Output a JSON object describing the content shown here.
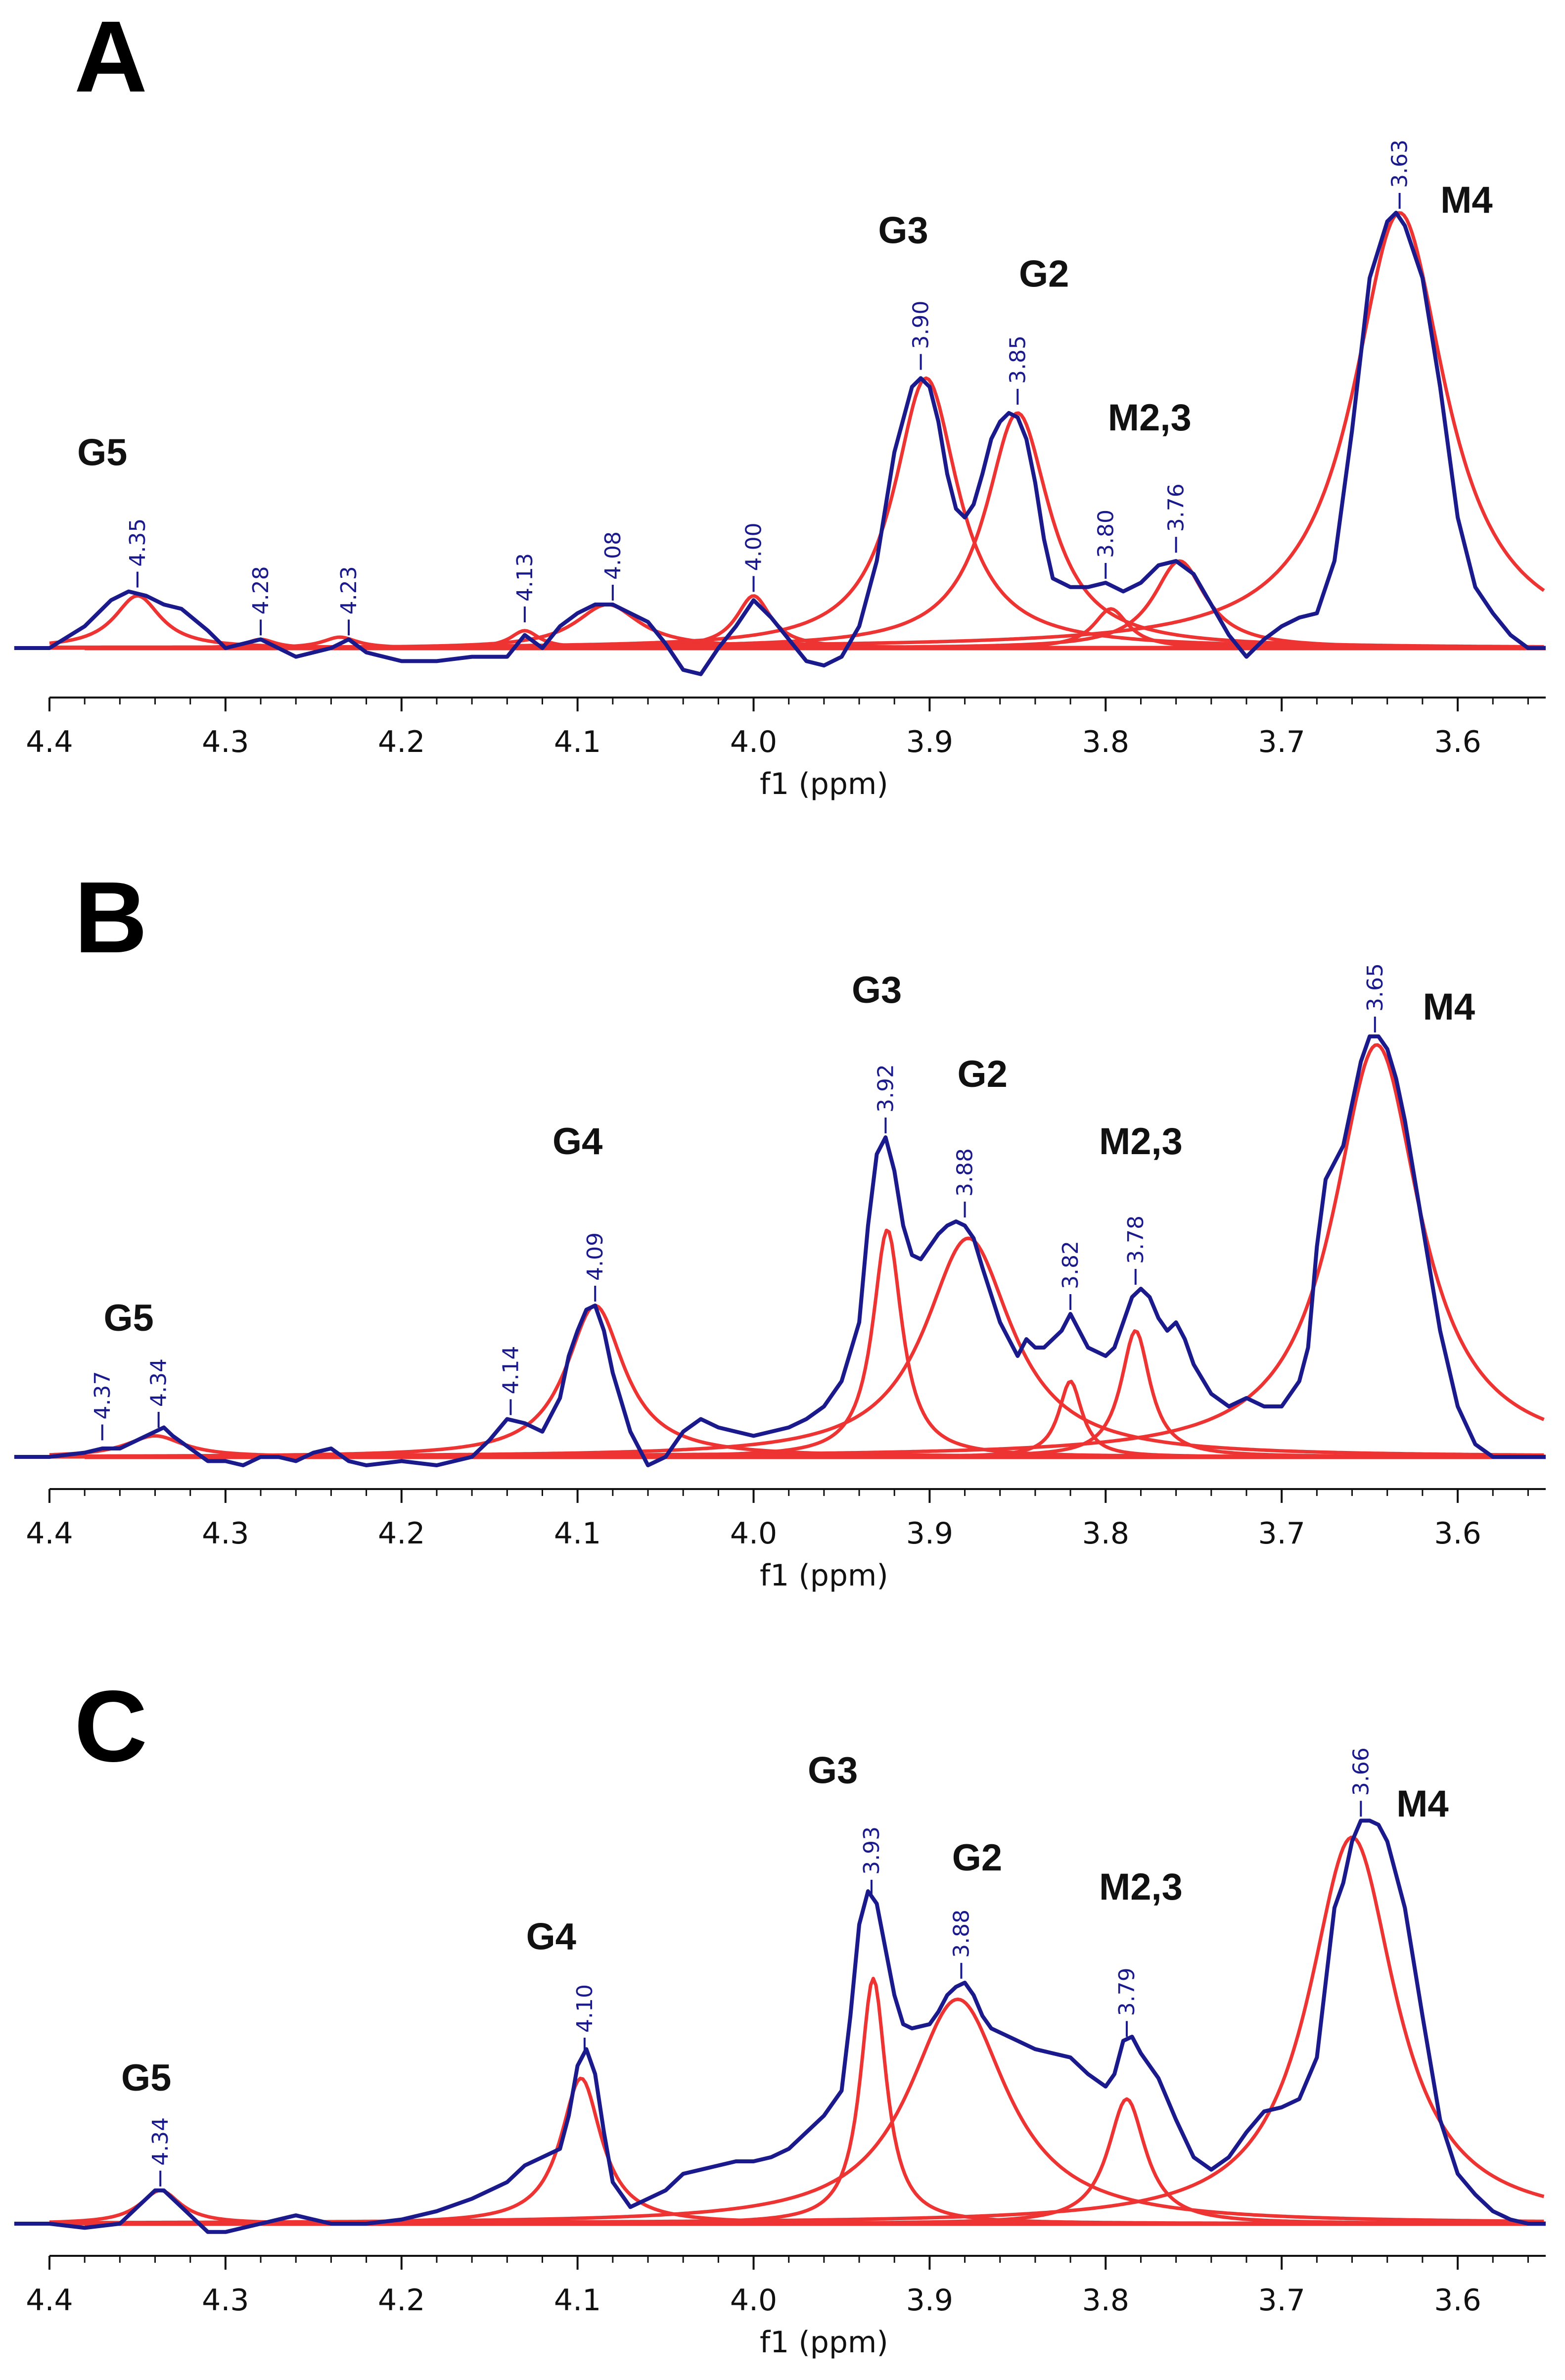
{
  "colors": {
    "spectrum": "#1a1a8c",
    "fit": "#ee3333",
    "axis": "#111111",
    "shift_label": "#1a1a8c"
  },
  "chart_data": [
    {
      "type": "line",
      "panel": "A",
      "xlabel": "f1 (ppm)",
      "xlim": [
        4.4,
        3.55
      ],
      "x_reversed": true,
      "xticks": [
        "4.4",
        "4.3",
        "4.2",
        "4.1",
        "4.0",
        "3.9",
        "3.8",
        "3.7",
        "3.6"
      ],
      "tick_values": [
        4.4,
        4.3,
        4.2,
        4.1,
        4.0,
        3.9,
        3.8,
        3.7,
        3.6
      ],
      "ylim": [
        0,
        1.05
      ],
      "grid": false,
      "peak_labels": [
        {
          "text": "G5",
          "x": 4.37,
          "y": 0.42
        },
        {
          "text": "G3",
          "x": 3.915,
          "y": 0.93
        },
        {
          "text": "G2",
          "x": 3.835,
          "y": 0.83
        },
        {
          "text": "M2,3",
          "x": 3.775,
          "y": 0.5
        },
        {
          "text": "M4",
          "x": 3.595,
          "y": 1.0
        }
      ],
      "shift_labels": [
        {
          "text": "4.35",
          "x": 4.35,
          "y": 0.13
        },
        {
          "text": "4.28",
          "x": 4.28,
          "y": 0.02
        },
        {
          "text": "4.23",
          "x": 4.23,
          "y": 0.02
        },
        {
          "text": "4.13",
          "x": 4.13,
          "y": 0.05
        },
        {
          "text": "4.08",
          "x": 4.08,
          "y": 0.1
        },
        {
          "text": "4.00",
          "x": 4.0,
          "y": 0.12
        },
        {
          "text": "3.90",
          "x": 3.905,
          "y": 0.63
        },
        {
          "text": "3.85",
          "x": 3.85,
          "y": 0.55
        },
        {
          "text": "3.80",
          "x": 3.8,
          "y": 0.15
        },
        {
          "text": "3.76",
          "x": 3.76,
          "y": 0.21
        },
        {
          "text": "3.63",
          "x": 3.633,
          "y": 1.0
        }
      ],
      "fit_peaks": [
        {
          "center": 4.35,
          "height": 0.12,
          "width": 0.016
        },
        {
          "center": 4.28,
          "height": 0.02,
          "width": 0.01
        },
        {
          "center": 4.235,
          "height": 0.025,
          "width": 0.012
        },
        {
          "center": 4.13,
          "height": 0.04,
          "width": 0.01
        },
        {
          "center": 4.083,
          "height": 0.1,
          "width": 0.022
        },
        {
          "center": 4.0,
          "height": 0.12,
          "width": 0.012
        },
        {
          "center": 3.902,
          "height": 0.62,
          "width": 0.022
        },
        {
          "center": 3.85,
          "height": 0.54,
          "width": 0.022
        },
        {
          "center": 3.797,
          "height": 0.09,
          "width": 0.012
        },
        {
          "center": 3.758,
          "height": 0.2,
          "width": 0.018
        },
        {
          "center": 3.633,
          "height": 1.0,
          "width": 0.032
        }
      ],
      "spectrum": {
        "x": [
          4.42,
          4.4,
          4.38,
          4.365,
          4.355,
          4.345,
          4.335,
          4.325,
          4.31,
          4.3,
          4.28,
          4.26,
          4.24,
          4.23,
          4.22,
          4.2,
          4.18,
          4.16,
          4.14,
          4.13,
          4.12,
          4.11,
          4.1,
          4.09,
          4.08,
          4.07,
          4.06,
          4.05,
          4.04,
          4.03,
          4.02,
          4.01,
          4.0,
          3.99,
          3.98,
          3.97,
          3.96,
          3.95,
          3.94,
          3.93,
          3.92,
          3.91,
          3.905,
          3.9,
          3.895,
          3.89,
          3.885,
          3.88,
          3.875,
          3.87,
          3.865,
          3.86,
          3.855,
          3.85,
          3.845,
          3.84,
          3.835,
          3.83,
          3.82,
          3.81,
          3.8,
          3.79,
          3.78,
          3.77,
          3.76,
          3.75,
          3.74,
          3.73,
          3.72,
          3.71,
          3.7,
          3.69,
          3.68,
          3.67,
          3.66,
          3.65,
          3.64,
          3.635,
          3.63,
          3.62,
          3.61,
          3.6,
          3.59,
          3.58,
          3.57,
          3.56,
          3.55
        ],
        "y": [
          0.0,
          0.0,
          0.05,
          0.11,
          0.13,
          0.12,
          0.1,
          0.09,
          0.04,
          0.0,
          0.02,
          -0.02,
          0.0,
          0.02,
          -0.01,
          -0.03,
          -0.03,
          -0.02,
          -0.02,
          0.03,
          0.0,
          0.05,
          0.08,
          0.1,
          0.1,
          0.08,
          0.06,
          0.01,
          -0.05,
          -0.06,
          0.0,
          0.05,
          0.11,
          0.07,
          0.02,
          -0.03,
          -0.04,
          -0.02,
          0.05,
          0.2,
          0.45,
          0.6,
          0.62,
          0.6,
          0.52,
          0.4,
          0.32,
          0.3,
          0.33,
          0.4,
          0.48,
          0.52,
          0.54,
          0.53,
          0.48,
          0.38,
          0.25,
          0.16,
          0.14,
          0.14,
          0.15,
          0.13,
          0.15,
          0.19,
          0.2,
          0.17,
          0.1,
          0.03,
          -0.02,
          0.02,
          0.05,
          0.07,
          0.08,
          0.2,
          0.5,
          0.85,
          0.98,
          1.0,
          0.97,
          0.85,
          0.6,
          0.3,
          0.14,
          0.08,
          0.03,
          0.0,
          0.0
        ]
      }
    },
    {
      "type": "line",
      "panel": "B",
      "xlabel": "f1 (ppm)",
      "xlim": [
        4.4,
        3.55
      ],
      "x_reversed": true,
      "xticks": [
        "4.4",
        "4.3",
        "4.2",
        "4.1",
        "4.0",
        "3.9",
        "3.8",
        "3.7",
        "3.6"
      ],
      "tick_values": [
        4.4,
        4.3,
        4.2,
        4.1,
        4.0,
        3.9,
        3.8,
        3.7,
        3.6
      ],
      "ylim": [
        0,
        1.05
      ],
      "grid": false,
      "peak_labels": [
        {
          "text": "G5",
          "x": 4.355,
          "y": 0.3
        },
        {
          "text": "G4",
          "x": 4.1,
          "y": 0.72
        },
        {
          "text": "G3",
          "x": 3.93,
          "y": 1.08
        },
        {
          "text": "G2",
          "x": 3.87,
          "y": 0.88
        },
        {
          "text": "M2,3",
          "x": 3.78,
          "y": 0.72
        },
        {
          "text": "M4",
          "x": 3.605,
          "y": 1.04
        }
      ],
      "shift_labels": [
        {
          "text": "4.37",
          "x": 4.37,
          "y": 0.03
        },
        {
          "text": "4.34",
          "x": 4.338,
          "y": 0.06
        },
        {
          "text": "4.14",
          "x": 4.138,
          "y": 0.09
        },
        {
          "text": "4.09",
          "x": 4.09,
          "y": 0.36
        },
        {
          "text": "3.92",
          "x": 3.925,
          "y": 0.76
        },
        {
          "text": "3.88",
          "x": 3.88,
          "y": 0.56
        },
        {
          "text": "3.82",
          "x": 3.82,
          "y": 0.34
        },
        {
          "text": "3.78",
          "x": 3.783,
          "y": 0.4
        },
        {
          "text": "3.65",
          "x": 3.647,
          "y": 1.0
        }
      ],
      "fit_peaks": [
        {
          "center": 4.34,
          "height": 0.05,
          "width": 0.02
        },
        {
          "center": 4.09,
          "height": 0.36,
          "width": 0.02
        },
        {
          "center": 3.924,
          "height": 0.54,
          "width": 0.01
        },
        {
          "center": 3.878,
          "height": 0.52,
          "width": 0.03
        },
        {
          "center": 3.82,
          "height": 0.18,
          "width": 0.008
        },
        {
          "center": 3.783,
          "height": 0.3,
          "width": 0.01
        },
        {
          "center": 3.646,
          "height": 0.98,
          "width": 0.03
        }
      ],
      "spectrum": {
        "x": [
          4.42,
          4.4,
          4.38,
          4.37,
          4.36,
          4.35,
          4.34,
          4.335,
          4.33,
          4.32,
          4.31,
          4.3,
          4.29,
          4.28,
          4.27,
          4.26,
          4.25,
          4.24,
          4.23,
          4.22,
          4.2,
          4.18,
          4.16,
          4.15,
          4.14,
          4.13,
          4.12,
          4.11,
          4.105,
          4.1,
          4.095,
          4.09,
          4.085,
          4.08,
          4.07,
          4.06,
          4.05,
          4.04,
          4.03,
          4.02,
          4.01,
          4.0,
          3.99,
          3.98,
          3.97,
          3.96,
          3.95,
          3.94,
          3.935,
          3.93,
          3.925,
          3.92,
          3.915,
          3.91,
          3.905,
          3.9,
          3.895,
          3.89,
          3.885,
          3.88,
          3.875,
          3.87,
          3.86,
          3.85,
          3.845,
          3.84,
          3.835,
          3.83,
          3.825,
          3.82,
          3.815,
          3.81,
          3.8,
          3.795,
          3.79,
          3.785,
          3.78,
          3.775,
          3.77,
          3.765,
          3.76,
          3.755,
          3.75,
          3.74,
          3.73,
          3.72,
          3.71,
          3.7,
          3.69,
          3.685,
          3.68,
          3.675,
          3.67,
          3.665,
          3.66,
          3.655,
          3.65,
          3.645,
          3.64,
          3.635,
          3.63,
          3.62,
          3.61,
          3.6,
          3.59,
          3.58,
          3.57,
          3.56,
          3.55
        ],
        "y": [
          0.0,
          0.0,
          0.01,
          0.02,
          0.02,
          0.04,
          0.06,
          0.07,
          0.05,
          0.02,
          -0.01,
          -0.01,
          -0.02,
          0.0,
          0.0,
          -0.01,
          0.01,
          0.02,
          -0.01,
          -0.02,
          -0.01,
          -0.02,
          0.0,
          0.04,
          0.09,
          0.08,
          0.06,
          0.14,
          0.24,
          0.3,
          0.35,
          0.36,
          0.3,
          0.2,
          0.06,
          -0.02,
          0.0,
          0.06,
          0.09,
          0.07,
          0.06,
          0.05,
          0.06,
          0.07,
          0.09,
          0.12,
          0.18,
          0.32,
          0.55,
          0.72,
          0.76,
          0.68,
          0.55,
          0.48,
          0.47,
          0.5,
          0.53,
          0.55,
          0.56,
          0.55,
          0.52,
          0.45,
          0.32,
          0.24,
          0.28,
          0.26,
          0.26,
          0.28,
          0.3,
          0.34,
          0.3,
          0.26,
          0.24,
          0.26,
          0.32,
          0.38,
          0.4,
          0.38,
          0.33,
          0.3,
          0.32,
          0.28,
          0.22,
          0.15,
          0.12,
          0.14,
          0.12,
          0.12,
          0.18,
          0.26,
          0.5,
          0.66,
          0.7,
          0.74,
          0.84,
          0.94,
          1.0,
          1.0,
          0.97,
          0.9,
          0.8,
          0.55,
          0.3,
          0.12,
          0.03,
          0.0,
          0.0,
          0.0,
          0.0
        ]
      }
    },
    {
      "type": "line",
      "panel": "C",
      "xlabel": "f1 (ppm)",
      "xlim": [
        4.4,
        3.55
      ],
      "x_reversed": true,
      "xticks": [
        "4.4",
        "4.3",
        "4.2",
        "4.1",
        "4.0",
        "3.9",
        "3.8",
        "3.7",
        "3.6"
      ],
      "tick_values": [
        4.4,
        4.3,
        4.2,
        4.1,
        4.0,
        3.9,
        3.8,
        3.7,
        3.6
      ],
      "ylim": [
        0,
        1.05
      ],
      "grid": false,
      "peak_labels": [
        {
          "text": "G5",
          "x": 4.345,
          "y": 0.32
        },
        {
          "text": "G4",
          "x": 4.115,
          "y": 0.66
        },
        {
          "text": "G3",
          "x": 3.955,
          "y": 1.06
        },
        {
          "text": "G2",
          "x": 3.873,
          "y": 0.85
        },
        {
          "text": "M2,3",
          "x": 3.78,
          "y": 0.78
        },
        {
          "text": "M4",
          "x": 3.62,
          "y": 0.98
        }
      ],
      "shift_labels": [
        {
          "text": "4.34",
          "x": 4.337,
          "y": 0.08
        },
        {
          "text": "4.10",
          "x": 4.096,
          "y": 0.4
        },
        {
          "text": "3.93",
          "x": 3.933,
          "y": 0.78
        },
        {
          "text": "3.88",
          "x": 3.882,
          "y": 0.58
        },
        {
          "text": "3.79",
          "x": 3.788,
          "y": 0.44
        },
        {
          "text": "3.66",
          "x": 3.655,
          "y": 0.97
        }
      ],
      "fit_peaks": [
        {
          "center": 4.337,
          "height": 0.08,
          "width": 0.014
        },
        {
          "center": 4.098,
          "height": 0.35,
          "width": 0.014
        },
        {
          "center": 3.932,
          "height": 0.59,
          "width": 0.009
        },
        {
          "center": 3.884,
          "height": 0.54,
          "width": 0.034
        },
        {
          "center": 3.788,
          "height": 0.3,
          "width": 0.013
        },
        {
          "center": 3.66,
          "height": 0.93,
          "width": 0.03
        }
      ],
      "spectrum": {
        "x": [
          4.42,
          4.4,
          4.38,
          4.36,
          4.35,
          4.34,
          4.335,
          4.33,
          4.32,
          4.31,
          4.3,
          4.28,
          4.26,
          4.25,
          4.24,
          4.22,
          4.2,
          4.18,
          4.16,
          4.14,
          4.13,
          4.12,
          4.11,
          4.105,
          4.1,
          4.095,
          4.09,
          4.085,
          4.08,
          4.07,
          4.06,
          4.05,
          4.04,
          4.03,
          4.02,
          4.01,
          4.0,
          3.99,
          3.98,
          3.97,
          3.96,
          3.95,
          3.945,
          3.94,
          3.935,
          3.93,
          3.925,
          3.92,
          3.915,
          3.91,
          3.9,
          3.895,
          3.89,
          3.885,
          3.88,
          3.875,
          3.87,
          3.865,
          3.86,
          3.85,
          3.84,
          3.83,
          3.82,
          3.81,
          3.8,
          3.795,
          3.79,
          3.785,
          3.78,
          3.775,
          3.77,
          3.76,
          3.75,
          3.74,
          3.73,
          3.72,
          3.71,
          3.7,
          3.69,
          3.68,
          3.675,
          3.67,
          3.665,
          3.66,
          3.655,
          3.65,
          3.645,
          3.64,
          3.63,
          3.62,
          3.61,
          3.6,
          3.59,
          3.58,
          3.57,
          3.56,
          3.55
        ],
        "y": [
          0.0,
          0.0,
          -0.01,
          0.0,
          0.04,
          0.08,
          0.08,
          0.06,
          0.02,
          -0.02,
          -0.02,
          0.0,
          0.02,
          0.01,
          0.0,
          0.0,
          0.01,
          0.03,
          0.06,
          0.1,
          0.14,
          0.16,
          0.18,
          0.26,
          0.38,
          0.42,
          0.36,
          0.22,
          0.1,
          0.04,
          0.06,
          0.08,
          0.12,
          0.13,
          0.14,
          0.15,
          0.15,
          0.16,
          0.18,
          0.22,
          0.26,
          0.32,
          0.5,
          0.72,
          0.8,
          0.77,
          0.66,
          0.55,
          0.48,
          0.47,
          0.48,
          0.51,
          0.55,
          0.57,
          0.58,
          0.55,
          0.5,
          0.47,
          0.46,
          0.44,
          0.42,
          0.41,
          0.4,
          0.36,
          0.33,
          0.36,
          0.44,
          0.45,
          0.41,
          0.38,
          0.35,
          0.25,
          0.16,
          0.13,
          0.16,
          0.22,
          0.27,
          0.28,
          0.3,
          0.4,
          0.58,
          0.76,
          0.82,
          0.92,
          0.97,
          0.97,
          0.96,
          0.92,
          0.76,
          0.5,
          0.25,
          0.12,
          0.07,
          0.03,
          0.01,
          0.0,
          0.0
        ]
      }
    }
  ]
}
